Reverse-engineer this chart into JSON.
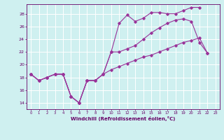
{
  "xlabel": "Windchill (Refroidissement éolien,°C)",
  "xlim": [
    -0.5,
    23.5
  ],
  "ylim": [
    13.0,
    29.5
  ],
  "yticks": [
    14,
    16,
    18,
    20,
    22,
    24,
    26,
    28
  ],
  "xticks": [
    0,
    1,
    2,
    3,
    4,
    5,
    6,
    7,
    8,
    9,
    10,
    11,
    12,
    13,
    14,
    15,
    16,
    17,
    18,
    19,
    20,
    21,
    22,
    23
  ],
  "bg_color": "#cff0f0",
  "grid_color": "#ffffff",
  "line_color": "#993399",
  "line1_y": [
    18.5,
    17.5,
    18.0,
    18.5,
    18.5,
    15.0,
    14.0,
    17.5,
    17.5,
    18.5,
    22.0,
    26.5,
    27.8,
    26.8,
    27.3,
    28.2,
    28.2,
    28.0,
    28.0,
    28.5,
    29.0,
    29.0,
    null,
    null
  ],
  "line2_y": [
    18.5,
    17.5,
    18.0,
    18.5,
    18.5,
    15.0,
    14.0,
    17.5,
    17.5,
    18.5,
    22.0,
    22.0,
    22.5,
    23.0,
    24.0,
    25.0,
    25.8,
    26.5,
    27.0,
    27.2,
    26.8,
    23.5,
    21.8,
    null
  ],
  "line3_y": [
    18.5,
    17.5,
    18.0,
    18.5,
    18.5,
    15.0,
    14.0,
    17.5,
    17.5,
    18.5,
    19.2,
    19.7,
    20.2,
    20.7,
    21.2,
    21.5,
    22.0,
    22.5,
    23.0,
    23.5,
    23.8,
    24.2,
    21.8,
    null
  ]
}
